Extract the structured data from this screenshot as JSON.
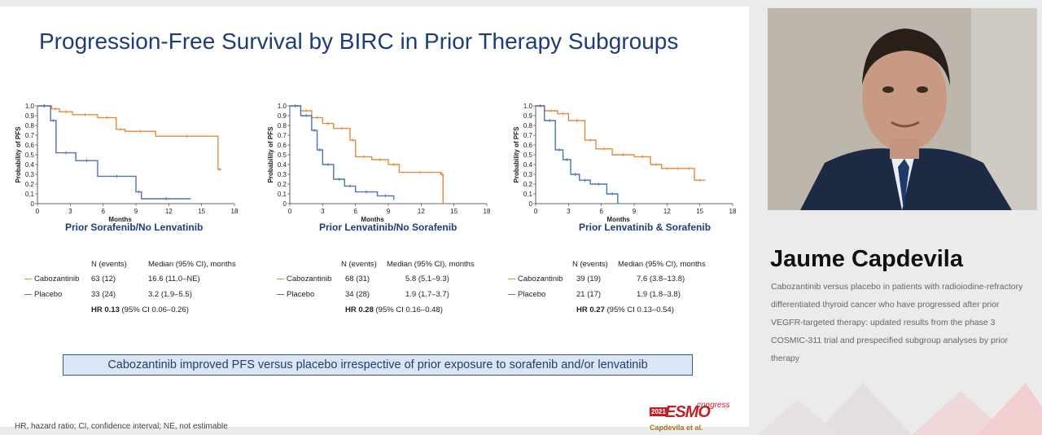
{
  "slide": {
    "title": "Progression-Free Survival by BIRC in Prior Therapy Subgroups",
    "key_message": "Cabozantinib improved PFS versus placebo irrespective of prior exposure to sorafenib and/or lenvatinib",
    "footnote": "HR, hazard ratio; CI, confidence interval; NE, not estimable",
    "logo": {
      "year": "2021",
      "name": "ESMO",
      "suffix": "congress",
      "author": "Capdevila et al."
    },
    "colors": {
      "cabozantinib": "#e8893a",
      "placebo": "#4a73b8",
      "title": "#1f3b78"
    }
  },
  "chart_data": [
    {
      "type": "line",
      "title": "Prior Sorafenib/No Lenvatinib",
      "xlabel": "Months",
      "ylabel": "Probability of PFS",
      "xlim": [
        0,
        18
      ],
      "ylim": [
        0,
        1.0
      ],
      "x_ticks": [
        "0",
        "3",
        "6",
        "9",
        "12",
        "15",
        "18"
      ],
      "y_ticks": [
        "0",
        "0.1",
        "0.2",
        "0.3",
        "0.4",
        "0.5",
        "0.6",
        "0.7",
        "0.8",
        "0.9",
        "1.0"
      ],
      "series": [
        {
          "name": "Cabozantinib",
          "x": [
            0,
            1.3,
            2.0,
            3.2,
            5.5,
            7.2,
            8.0,
            10.8,
            16.5,
            16.8
          ],
          "y": [
            1.0,
            0.97,
            0.94,
            0.91,
            0.88,
            0.76,
            0.74,
            0.69,
            0.35,
            0.35
          ]
        },
        {
          "name": "Placebo",
          "x": [
            0,
            1.2,
            1.7,
            3.5,
            5.5,
            9.0,
            9.5,
            14.0
          ],
          "y": [
            1.0,
            0.85,
            0.52,
            0.44,
            0.28,
            0.12,
            0.05,
            0.05
          ]
        }
      ],
      "table": {
        "headers": [
          "N (events)",
          "Median (95% CI), months"
        ],
        "rows": [
          {
            "arm": "Cabozantinib",
            "n": "63 (12)",
            "median": "16.6 (11.0–NE)"
          },
          {
            "arm": "Placebo",
            "n": "33 (24)",
            "median": "3.2 (1.9–5.5)"
          }
        ],
        "hr_label": "HR 0.13",
        "hr_ci": "(95% CI 0.06–0.26)"
      }
    },
    {
      "type": "line",
      "title": "Prior Lenvatinib/No Sorafenib",
      "xlabel": "Months",
      "ylabel": "Probability of PFS",
      "xlim": [
        0,
        18
      ],
      "ylim": [
        0,
        1.0
      ],
      "x_ticks": [
        "0",
        "3",
        "6",
        "9",
        "12",
        "15",
        "18"
      ],
      "y_ticks": [
        "0",
        "0.1",
        "0.2",
        "0.3",
        "0.4",
        "0.5",
        "0.6",
        "0.7",
        "0.8",
        "0.9",
        "1.0"
      ],
      "series": [
        {
          "name": "Cabozantinib",
          "x": [
            0,
            1.0,
            2.0,
            3.0,
            4.0,
            5.5,
            6.0,
            7.5,
            9.0,
            10.0,
            13.8,
            14.0
          ],
          "y": [
            1.0,
            0.95,
            0.88,
            0.82,
            0.77,
            0.65,
            0.48,
            0.45,
            0.4,
            0.32,
            0.3,
            0.0
          ]
        },
        {
          "name": "Placebo",
          "x": [
            0,
            1.0,
            2.0,
            2.5,
            3.0,
            4.0,
            5.0,
            6.0,
            8.0,
            9.5
          ],
          "y": [
            1.0,
            0.9,
            0.75,
            0.55,
            0.4,
            0.25,
            0.18,
            0.12,
            0.08,
            0.04
          ]
        }
      ],
      "table": {
        "headers": [
          "N (events)",
          "Median (95% CI), months"
        ],
        "rows": [
          {
            "arm": "Cabozantinib",
            "n": "68 (31)",
            "median": "5.8 (5.1–9.3)"
          },
          {
            "arm": "Placebo",
            "n": "34 (28)",
            "median": "1.9 (1.7–3.7)"
          }
        ],
        "hr_label": "HR 0.28",
        "hr_ci": "(95% CI 0.16–0.48)"
      }
    },
    {
      "type": "line",
      "title": "Prior Lenvatinib & Sorafenib",
      "xlabel": "Months",
      "ylabel": "Probability of PFS",
      "xlim": [
        0,
        18
      ],
      "ylim": [
        0,
        1.0
      ],
      "x_ticks": [
        "0",
        "3",
        "6",
        "9",
        "12",
        "15",
        "18"
      ],
      "y_ticks": [
        "0",
        "0.1",
        "0.2",
        "0.3",
        "0.4",
        "0.5",
        "0.6",
        "0.7",
        "0.8",
        "0.9",
        "1.0"
      ],
      "series": [
        {
          "name": "Cabozantinib",
          "x": [
            0,
            0.8,
            2.0,
            3.0,
            4.5,
            5.5,
            7.0,
            9.0,
            10.5,
            11.5,
            12.5,
            13.5,
            14.5,
            15.5
          ],
          "y": [
            1.0,
            0.95,
            0.92,
            0.85,
            0.65,
            0.56,
            0.5,
            0.48,
            0.4,
            0.36,
            0.36,
            0.36,
            0.24,
            0.24
          ]
        },
        {
          "name": "Placebo",
          "x": [
            0,
            0.8,
            1.8,
            2.5,
            3.2,
            4.0,
            5.0,
            6.5,
            7.5
          ],
          "y": [
            1.0,
            0.85,
            0.55,
            0.45,
            0.3,
            0.24,
            0.2,
            0.1,
            0.0
          ]
        }
      ],
      "table": {
        "headers": [
          "N (events)",
          "Median (95% CI), months"
        ],
        "rows": [
          {
            "arm": "Cabozantinib",
            "n": "39 (19)",
            "median": "7.6 (3.8–13.8)"
          },
          {
            "arm": "Placebo",
            "n": "21 (17)",
            "median": "1.9 (1.8–3.8)"
          }
        ],
        "hr_label": "HR 0.27",
        "hr_ci": "(95% CI 0.13–0.54)"
      }
    }
  ],
  "sidebar": {
    "speaker_name": "Jaume Capdevila",
    "talk_title": "Cabozantinib versus placebo in patients with radioiodine-refractory differentiated thyroid cancer who have progressed after prior VEGFR-targeted therapy: updated results from the phase 3 COSMIC-311 trial and prespecified subgroup analyses by prior therapy"
  }
}
